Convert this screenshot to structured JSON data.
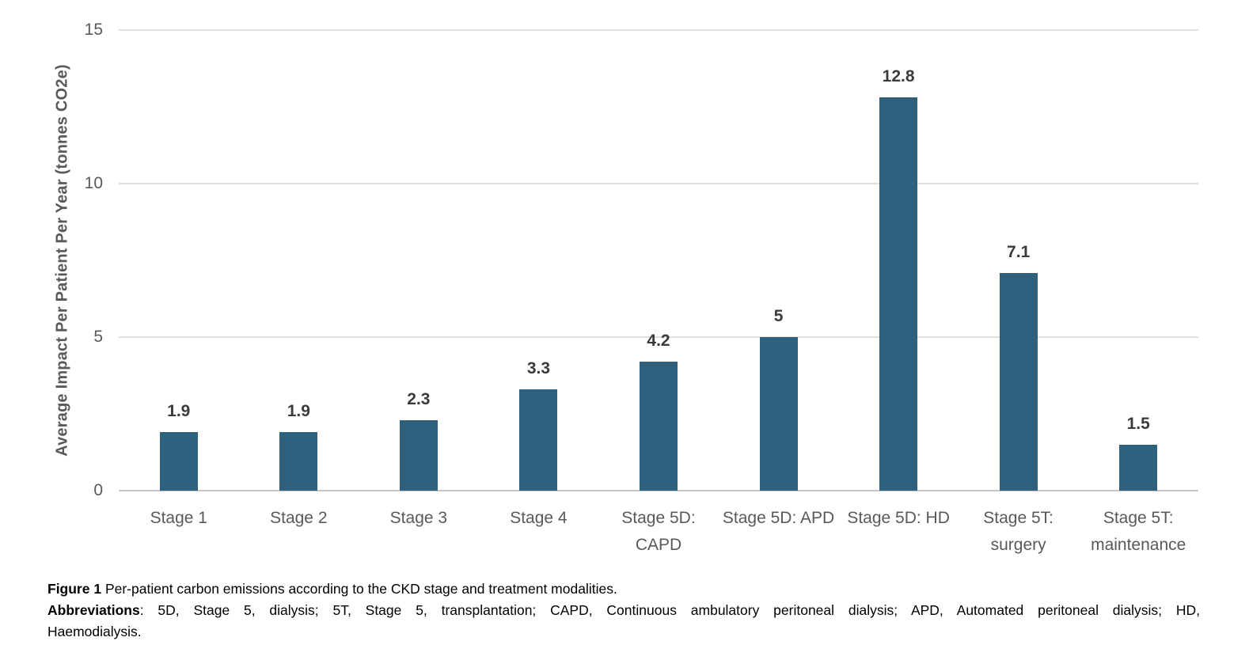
{
  "chart_data": {
    "type": "bar",
    "categories": [
      "Stage 1",
      "Stage 2",
      "Stage 3",
      "Stage 4",
      "Stage 5D: CAPD",
      "Stage 5D: APD",
      "Stage 5D: HD",
      "Stage 5T: surgery",
      "Stage 5T: maintenance"
    ],
    "category_lines": [
      [
        "Stage 1"
      ],
      [
        "Stage 2"
      ],
      [
        "Stage 3"
      ],
      [
        "Stage 4"
      ],
      [
        "Stage 5D:",
        "CAPD"
      ],
      [
        "Stage 5D: APD"
      ],
      [
        "Stage 5D: HD"
      ],
      [
        "Stage 5T:",
        "surgery"
      ],
      [
        "Stage 5T:",
        "maintenance"
      ]
    ],
    "values": [
      1.9,
      1.9,
      2.3,
      3.3,
      4.2,
      5,
      12.8,
      7.1,
      1.5
    ],
    "value_labels": [
      "1.9",
      "1.9",
      "2.3",
      "3.3",
      "4.2",
      "5",
      "12.8",
      "7.1",
      "1.5"
    ],
    "title": "",
    "xlabel": "",
    "ylabel": "Average Impact Per Patient Per Year (tonnes CO2e)",
    "ylim": [
      0,
      15
    ],
    "yticks": [
      0,
      5,
      10,
      15
    ],
    "ytick_labels": [
      "0",
      "5",
      "10",
      "15"
    ],
    "grid": true,
    "legend": false,
    "colors": {
      "bar": "#2E617E",
      "axis_text": "#595959",
      "value_label": "#3B3B3B",
      "gridline": "#DEDEDE",
      "axis_line": "#C6C6C6"
    }
  },
  "caption": {
    "figure_label": "Figure 1",
    "figure_text": "Per-patient carbon emissions according to the CKD stage and treatment modalities.",
    "abbreviations_label": "Abbreviations",
    "abbreviations_text": ": 5D, Stage 5, dialysis; 5T, Stage 5, transplantation; CAPD, Continuous ambulatory peritoneal dialysis; APD, Automated peritoneal dialysis; HD,",
    "abbreviations_last_line": "Haemodialysis."
  }
}
